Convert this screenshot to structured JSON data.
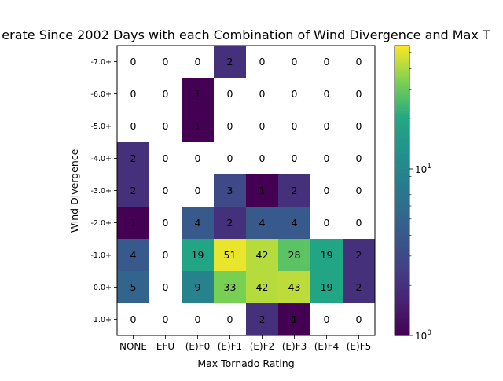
{
  "chart_data": {
    "type": "heatmap",
    "title": "erate Since 2002 Days with each Combination of Wind Divergence and Max T",
    "xlabel": "Max Tornado Rating",
    "ylabel": "Wind Divergence",
    "x_categories": [
      "NONE",
      "EFU",
      "(E)F0",
      "(E)F1",
      "(E)F2",
      "(E)F3",
      "(E)F4",
      "(E)F5"
    ],
    "y_categories": [
      "-7.0+",
      "-6.0+",
      "-5.0+",
      "-4.0+",
      "-3.0+",
      "-2.0+",
      "-1.0+",
      "0.0+",
      "1.0+"
    ],
    "values": [
      [
        0,
        0,
        0,
        2,
        0,
        0,
        0,
        0
      ],
      [
        0,
        0,
        1,
        0,
        0,
        0,
        0,
        0
      ],
      [
        0,
        0,
        1,
        0,
        0,
        0,
        0,
        0
      ],
      [
        2,
        0,
        0,
        0,
        0,
        0,
        0,
        0
      ],
      [
        2,
        0,
        0,
        3,
        1,
        2,
        0,
        0
      ],
      [
        1,
        0,
        4,
        2,
        4,
        4,
        0,
        0
      ],
      [
        4,
        0,
        19,
        51,
        42,
        28,
        19,
        2
      ],
      [
        5,
        0,
        9,
        33,
        42,
        43,
        19,
        2
      ],
      [
        0,
        0,
        0,
        0,
        2,
        1,
        0,
        0
      ]
    ],
    "colorscale": "viridis",
    "color_scale_type": "log",
    "zero_color": "#ffffff",
    "color_range": [
      1,
      55
    ],
    "colorbar_ticks": [
      {
        "value": 10,
        "base": "10",
        "exp": "1"
      },
      {
        "value": 1,
        "base": "10",
        "exp": "0"
      }
    ]
  }
}
